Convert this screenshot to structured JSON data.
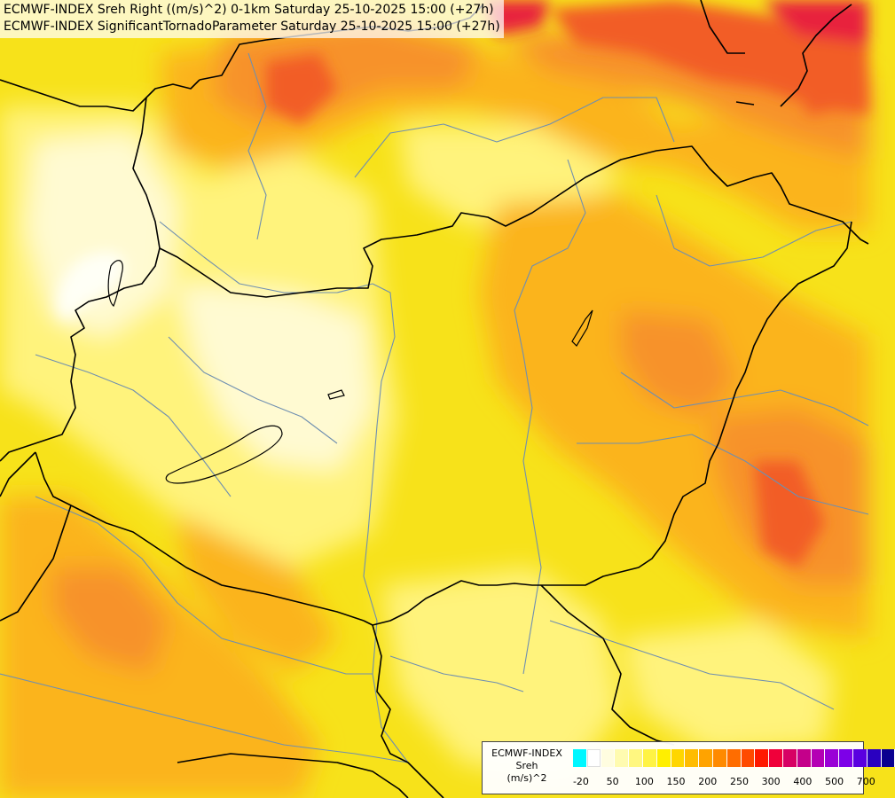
{
  "title": {
    "line1": "ECMWF-INDEX Sreh Right ((m/s)^2) 0-1km Saturday 25-10-2025 15:00 (+27h)",
    "line2": "ECMWF-INDEX SignificantTornadoParameter Saturday 25-10-2025 15:00 (+27h)"
  },
  "legend": {
    "label1": "ECMWF-INDEX",
    "label2": "Sreh",
    "label3": "(m/s)^2",
    "colors": [
      "#00f7ff",
      "#ffffff",
      "#fffde0",
      "#fffbb0",
      "#fff780",
      "#fff344",
      "#ffef00",
      "#ffd600",
      "#ffbc00",
      "#ffa300",
      "#ff8a00",
      "#ff6d00",
      "#ff4a00",
      "#ff1800",
      "#f0003a",
      "#d70064",
      "#c4008a",
      "#b400b4",
      "#9a00d6",
      "#7d00e8",
      "#5a00e0",
      "#2a00c0",
      "#0a0090"
    ],
    "ticks": [
      {
        "label": "-20",
        "pos": 0.5
      },
      {
        "label": "50",
        "pos": 2.5
      },
      {
        "label": "100",
        "pos": 4.5
      },
      {
        "label": "150",
        "pos": 6.5
      },
      {
        "label": "200",
        "pos": 8.5
      },
      {
        "label": "250",
        "pos": 10.5
      },
      {
        "label": "300",
        "pos": 12.5
      },
      {
        "label": "400",
        "pos": 14.5
      },
      {
        "label": "500",
        "pos": 16.5
      },
      {
        "label": "700",
        "pos": 18.5
      }
    ]
  },
  "map": {
    "colors": {
      "base": "#f7e21a",
      "light": "#fff37c",
      "pale": "#fffad2",
      "white": "#fffff6",
      "orange": "#fbb41c",
      "orange2": "#f7922a",
      "red": "#f25d26",
      "crimson": "#e8203c",
      "border": "#000000",
      "river": "#6f8fb0"
    }
  }
}
